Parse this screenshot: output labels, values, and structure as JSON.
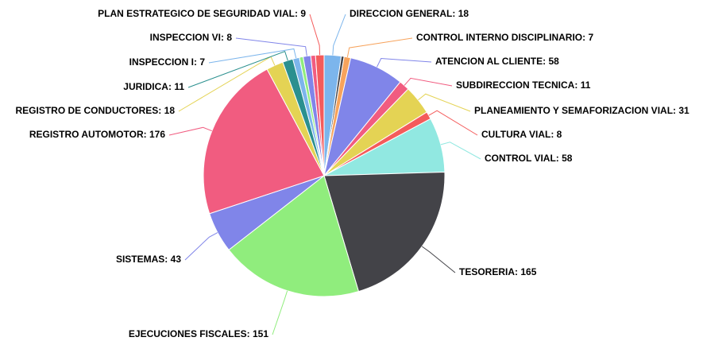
{
  "chart_data": {
    "type": "pie",
    "categories": [
      "DIRECCION GENERAL",
      null,
      "CONTROL INTERNO DISCIPLINARIO",
      "ATENCION AL CLIENTE",
      "SUBDIRECCION TECNICA",
      "PLANEAMIENTO Y SEMAFORIZACION VIAL",
      "CULTURA VIAL",
      "CONTROL VIAL",
      "TESORERIA",
      "EJECUCIONES FISCALES",
      "SISTEMAS",
      "REGISTRO AUTOMOTOR",
      "REGISTRO DE CONDUCTORES",
      "JURIDICA",
      "INSPECCION I",
      null,
      "INSPECCION VI",
      null,
      "PLAN ESTRATEGICO DE SEGURIDAD VIAL"
    ],
    "values": [
      18,
      3,
      7,
      58,
      11,
      31,
      8,
      58,
      165,
      151,
      43,
      176,
      18,
      11,
      7,
      4,
      8,
      5,
      9
    ],
    "colors": [
      "#7cb5ec",
      "#434348",
      "#f7a35c",
      "#8085e9",
      "#f15c80",
      "#e4d354",
      "#f45b5b",
      "#91e8e1",
      "#434348",
      "#90ed7d",
      "#8085e9",
      "#f15c80",
      "#e4d354",
      "#2b908f",
      "#7cb5ec",
      "#90ed7d",
      "#8085e9",
      "#f15c80",
      "#f45b5b"
    ]
  }
}
